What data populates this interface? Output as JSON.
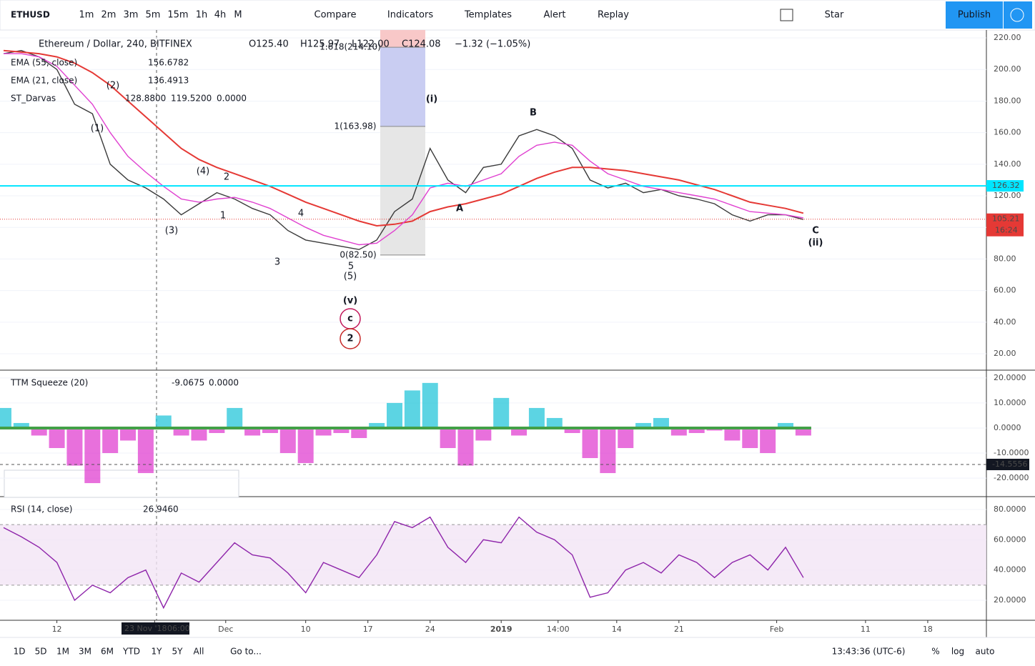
{
  "toolbar": {
    "symbol": "ETHUSD",
    "intervals": [
      "1m",
      "2m",
      "3m",
      "5m",
      "15m",
      "1h",
      "4h",
      "M"
    ],
    "compare": "Compare",
    "indicators": "Indicators",
    "templates": "Templates",
    "alert": "Alert",
    "replay": "Replay",
    "star": "Star",
    "publish": "Publish"
  },
  "legend": {
    "name": "Ethereum / Dollar, 240, BITFINEX",
    "ohlc": [
      "O125.40",
      "H125.97",
      "L122.00",
      "C124.08",
      "−1.32 (−1.05%)"
    ],
    "studies": [
      {
        "name": "EMA (55, close)",
        "values": [
          "156.6782"
        ],
        "color": "#e53935"
      },
      {
        "name": "EMA (21, close)",
        "values": [
          "136.4913"
        ],
        "color": "#d81bbf"
      },
      {
        "name": "ST_Darvas",
        "values": [
          "128.8800",
          "119.5200",
          "0.0000"
        ],
        "color": "#555"
      }
    ]
  },
  "crosshair": {
    "date": "23 Nov '18",
    "time": "06:00"
  },
  "chart_data": [
    {
      "type": "line",
      "x": [
        -25,
        -23,
        -21,
        -19,
        -17,
        -15,
        -13,
        -11,
        -9,
        -7,
        -5,
        -3,
        -1,
        1,
        3,
        5,
        7,
        9,
        11,
        13,
        15,
        17,
        19,
        21,
        23,
        25,
        27,
        29,
        31,
        33,
        35,
        37,
        39,
        41,
        43,
        45,
        47,
        49,
        51,
        53,
        55,
        57,
        59,
        61,
        63,
        65
      ],
      "xlim": [
        -25.4,
        85.6
      ],
      "ylim": [
        9.6,
        225
      ],
      "yticks": [
        {
          "value": 20,
          "label": "20.00"
        },
        {
          "value": 40,
          "label": "40.00"
        },
        {
          "value": 60,
          "label": "60.00"
        },
        {
          "value": 80,
          "label": "80.00"
        },
        {
          "value": 100,
          "label": "100.00"
        },
        {
          "value": 120,
          "label": "120.00"
        },
        {
          "value": 140,
          "label": "140.00"
        },
        {
          "value": 160,
          "label": "160.00"
        },
        {
          "value": 180,
          "label": "180.00"
        },
        {
          "value": 200,
          "label": "200.00"
        },
        {
          "value": 220,
          "label": "220.00"
        }
      ],
      "series": [
        {
          "color": "#3a3a3a",
          "values": [
            210,
            212,
            208,
            200,
            178,
            172,
            140,
            130,
            125,
            118,
            108,
            115,
            122,
            118,
            112,
            108,
            98,
            92,
            90,
            88,
            86,
            92,
            110,
            118,
            150,
            130,
            122,
            138,
            140,
            158,
            162,
            158,
            150,
            130,
            125,
            128,
            122,
            124,
            120,
            118,
            115,
            108,
            104,
            108,
            108,
            105
          ]
        },
        {
          "name": "EMA (55, close)",
          "color": "#e53935",
          "values": [
            212,
            211,
            210,
            208,
            204,
            198,
            190,
            180,
            170,
            160,
            150,
            143,
            138,
            134,
            130,
            126,
            121,
            116,
            112,
            108,
            104,
            101,
            102,
            104,
            110,
            113,
            115,
            118,
            121,
            126,
            131,
            135,
            138,
            138,
            137,
            136,
            134,
            132,
            130,
            127,
            124,
            120,
            116,
            114,
            112,
            109
          ]
        },
        {
          "name": "EMA (21, close)",
          "color": "#e040d0",
          "values": [
            210,
            210,
            208,
            202,
            190,
            178,
            160,
            145,
            135,
            126,
            118,
            116,
            118,
            119,
            116,
            112,
            106,
            100,
            95,
            92,
            89,
            90,
            98,
            108,
            125,
            128,
            126,
            130,
            134,
            145,
            152,
            154,
            152,
            142,
            134,
            130,
            126,
            124,
            122,
            120,
            118,
            114,
            110,
            109,
            108,
            106
          ]
        }
      ],
      "hline": {
        "value": 126.32,
        "label": "126.32",
        "color": "#00e5ff"
      },
      "last_price": {
        "value": 105.21,
        "label": "105.21",
        "countdown": "16:24",
        "color": "#e53935"
      },
      "fib": [
        {
          "value": 214.1,
          "label": "1.618(214.10)"
        },
        {
          "value": 163.98,
          "label": "1(163.98)"
        },
        {
          "value": 82.5,
          "label": "0(82.50)"
        }
      ],
      "annotations": [
        "(i)",
        "(ii)",
        "(v)",
        "c",
        "2",
        "A",
        "B",
        "C",
        "(1)",
        "(2)",
        "(3)",
        "(4)",
        "(5)",
        "2",
        "1",
        "3",
        "4",
        "5"
      ]
    },
    {
      "type": "histogram",
      "x": [
        -25,
        -23,
        -21,
        -19,
        -17,
        -15,
        -13,
        -11,
        -9,
        -7,
        -5,
        -3,
        -1,
        1,
        3,
        5,
        7,
        9,
        11,
        13,
        15,
        17,
        19,
        21,
        23,
        25,
        27,
        29,
        31,
        33,
        35,
        37,
        39,
        41,
        43,
        45,
        47,
        49,
        51,
        53,
        55,
        57,
        59,
        61,
        63,
        65
      ],
      "xlim": [
        -25.4,
        85.6
      ],
      "ylim": [
        -27.4,
        23.1
      ],
      "yticks": [
        {
          "value": -20,
          "label": "-20.0000"
        },
        {
          "value": -10,
          "label": "-10.0000"
        },
        {
          "value": 0,
          "label": "0.0000"
        },
        {
          "value": 10,
          "label": "10.0000"
        },
        {
          "value": 20,
          "label": "20.0000"
        }
      ],
      "series": [
        {
          "name": "TTM Squeeze (20)",
          "color": "#26c6da",
          "negative_color": "#e040d0",
          "values": [
            8,
            2,
            -3,
            -8,
            -15,
            -22,
            -10,
            -5,
            -18,
            5,
            -3,
            -5,
            -2,
            8,
            -3,
            -2,
            -10,
            -14,
            -3,
            -2,
            -4,
            2,
            10,
            15,
            18,
            -8,
            -15,
            -5,
            12,
            -3,
            8,
            4,
            -2,
            -12,
            -18,
            -8,
            2,
            4,
            -3,
            -2,
            -1,
            -5,
            -8,
            -10,
            2,
            -3
          ]
        }
      ],
      "legend_values": [
        "-9.0675",
        "0.0000"
      ],
      "crosshair": {
        "value": -14.5556,
        "label": "-14.5556"
      }
    },
    {
      "type": "line",
      "x": [
        -25,
        -23,
        -21,
        -19,
        -17,
        -15,
        -13,
        -11,
        -9,
        -7,
        -5,
        -3,
        -1,
        1,
        3,
        5,
        7,
        9,
        11,
        13,
        15,
        17,
        19,
        21,
        23,
        25,
        27,
        29,
        31,
        33,
        35,
        37,
        39,
        41,
        43,
        45,
        47,
        49,
        51,
        53,
        55,
        57,
        59,
        61,
        63,
        65
      ],
      "xlim": [
        -25.4,
        85.6
      ],
      "ylim": [
        6.8,
        88.5
      ],
      "yticks": [
        {
          "value": 20,
          "label": "20.0000"
        },
        {
          "value": 40,
          "label": "40.0000"
        },
        {
          "value": 60,
          "label": "60.0000"
        },
        {
          "value": 80,
          "label": "80.0000"
        }
      ],
      "band": [
        30,
        70
      ],
      "series": [
        {
          "name": "RSI (14, close)",
          "color": "#8e24aa",
          "values": [
            68,
            62,
            55,
            45,
            20,
            30,
            25,
            35,
            40,
            15,
            38,
            32,
            45,
            58,
            50,
            48,
            38,
            25,
            45,
            40,
            35,
            50,
            72,
            68,
            75,
            55,
            45,
            60,
            58,
            75,
            65,
            60,
            50,
            22,
            25,
            40,
            45,
            38,
            50,
            45,
            35,
            45,
            50,
            40,
            55,
            35
          ]
        }
      ],
      "legend_values": [
        "26.9460"
      ],
      "xticks": [
        {
          "value": -19,
          "label": "12"
        },
        {
          "value": -8,
          "label": "1"
        },
        {
          "value": 0,
          "label": "Dec"
        },
        {
          "value": 9,
          "label": "10"
        },
        {
          "value": 16,
          "label": "17"
        },
        {
          "value": 23,
          "label": "24"
        },
        {
          "value": 31,
          "label": "2019"
        },
        {
          "value": 37.4,
          "label": "14:00"
        },
        {
          "value": 44,
          "label": "14"
        },
        {
          "value": 51,
          "label": "21"
        },
        {
          "value": 62,
          "label": "Feb"
        },
        {
          "value": 72,
          "label": "11"
        },
        {
          "value": 79,
          "label": "18"
        }
      ]
    }
  ],
  "bottom": {
    "ranges": [
      "1D",
      "5D",
      "1M",
      "3M",
      "6M",
      "YTD",
      "1Y",
      "5Y",
      "All"
    ],
    "goto": "Go to...",
    "clock": "13:43:36 (UTC-6)",
    "percent": "%",
    "log": "log",
    "auto": "auto"
  }
}
